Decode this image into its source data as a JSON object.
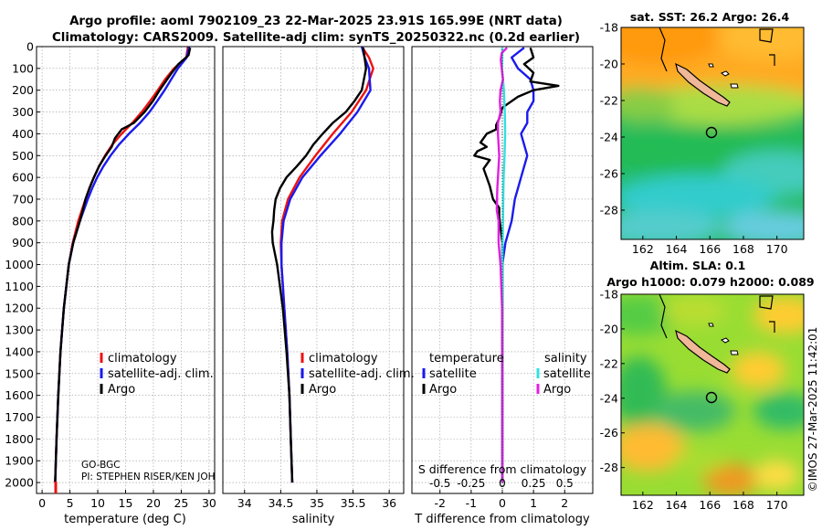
{
  "title": {
    "line1": "Argo profile: aoml 7902109_23 22-Mar-2025 23.91S 165.99E (NRT data)",
    "line2": "Climatology: CARS2009. Satellite-adj clim: synTS_20250322.nc (0.2d earlier)"
  },
  "colors": {
    "clim": "#ee1111",
    "sat": "#1a1aee",
    "argo": "#000000",
    "sat_s": "#33e0e0",
    "argo_s": "#e020e0",
    "grid": "#9a9a9a",
    "island": "#f0b898"
  },
  "chart_data": [
    {
      "type": "line",
      "id": "temperature",
      "xlabel": "temperature (deg C)",
      "ylabel": "",
      "xlim": [
        -1,
        31
      ],
      "ylim": [
        2050,
        0
      ],
      "xticks": [
        0,
        5,
        10,
        15,
        20,
        25,
        30
      ],
      "yticks": [
        0,
        100,
        200,
        300,
        400,
        500,
        600,
        700,
        800,
        900,
        1000,
        1100,
        1200,
        1300,
        1400,
        1500,
        1600,
        1700,
        1800,
        1900,
        2000
      ],
      "legend": [
        "climatology",
        "satellite-adj. clim.",
        "Argo"
      ],
      "legend_loc": "center-right",
      "annotation": [
        "GO-BGC",
        "PI: STEPHEN RISER/KEN JOHN"
      ],
      "series": [
        {
          "name": "climatology",
          "color": "clim",
          "depth": [
            0,
            50,
            100,
            150,
            200,
            250,
            300,
            350,
            400,
            450,
            500,
            550,
            600,
            650,
            700,
            800,
            900,
            1000,
            1200,
            1400,
            1600,
            1800,
            2000
          ],
          "values": [
            26.2,
            25.9,
            23.7,
            22.1,
            20.8,
            19.4,
            17.9,
            16.2,
            14.3,
            12.6,
            11.3,
            10.2,
            9.3,
            8.5,
            7.8,
            6.5,
            5.5,
            4.8,
            3.9,
            3.3,
            2.9,
            2.6,
            2.35
          ]
        },
        {
          "name": "satellite-adj. clim.",
          "color": "sat",
          "depth": [
            0,
            50,
            100,
            150,
            200,
            250,
            300,
            350,
            400,
            450,
            500,
            550,
            600,
            650,
            700,
            800,
            900,
            1000,
            1200,
            1400,
            1600,
            1800,
            2000
          ],
          "values": [
            26.4,
            26.0,
            24.4,
            23.2,
            22.0,
            20.7,
            19.3,
            17.6,
            15.6,
            13.8,
            12.3,
            11.0,
            9.9,
            9.0,
            8.2,
            6.8,
            5.6,
            4.8,
            3.9,
            3.3,
            2.9,
            2.6,
            2.35
          ]
        },
        {
          "name": "Argo",
          "color": "argo",
          "depth": [
            5,
            40,
            80,
            120,
            160,
            200,
            250,
            300,
            350,
            380,
            420,
            460,
            500,
            550,
            600,
            650,
            700,
            750,
            800,
            900,
            1000,
            1200,
            1400,
            1600,
            1800,
            2000
          ],
          "values": [
            26.6,
            26.3,
            24.5,
            23.3,
            22.2,
            21.1,
            19.9,
            18.4,
            16.5,
            14.3,
            13.1,
            12.5,
            11.4,
            10.2,
            9.3,
            8.5,
            7.8,
            7.3,
            6.8,
            5.6,
            4.8,
            3.9,
            3.3,
            2.9,
            2.6,
            2.35
          ]
        }
      ]
    },
    {
      "type": "line",
      "id": "salinity",
      "xlabel": "salinity",
      "xlim": [
        33.7,
        36.2
      ],
      "ylim": [
        2050,
        0
      ],
      "xticks": [
        34,
        34.5,
        35,
        35.5,
        36
      ],
      "legend": [
        "climatology",
        "satellite-adj. clim.",
        "Argo"
      ],
      "legend_loc": "center-right",
      "series": [
        {
          "name": "climatology",
          "color": "clim",
          "depth": [
            0,
            50,
            100,
            200,
            300,
            400,
            500,
            600,
            700,
            800,
            900,
            1000,
            1200,
            1400,
            1600,
            1800,
            2000
          ],
          "values": [
            35.62,
            35.72,
            35.78,
            35.68,
            35.48,
            35.22,
            34.98,
            34.76,
            34.6,
            34.52,
            34.5,
            34.51,
            34.55,
            34.59,
            34.62,
            34.64,
            34.66
          ]
        },
        {
          "name": "satellite-adj. clim.",
          "color": "sat",
          "depth": [
            0,
            50,
            100,
            200,
            300,
            400,
            500,
            600,
            700,
            800,
            900,
            1000,
            1200,
            1400,
            1600,
            1800,
            2000
          ],
          "values": [
            35.62,
            35.66,
            35.72,
            35.74,
            35.56,
            35.32,
            35.05,
            34.8,
            34.63,
            34.54,
            34.51,
            34.51,
            34.55,
            34.59,
            34.62,
            34.64,
            34.66
          ]
        },
        {
          "name": "Argo",
          "color": "argo",
          "depth": [
            5,
            50,
            100,
            200,
            250,
            300,
            350,
            400,
            450,
            500,
            550,
            600,
            650,
            700,
            750,
            800,
            850,
            900,
            1000,
            1200,
            1400,
            1600,
            1800,
            2000
          ],
          "values": [
            35.64,
            35.66,
            35.68,
            35.62,
            35.52,
            35.4,
            35.22,
            35.08,
            34.95,
            34.85,
            34.72,
            34.58,
            34.49,
            34.43,
            34.41,
            34.4,
            34.38,
            34.39,
            34.45,
            34.53,
            34.58,
            34.62,
            34.64,
            34.66
          ]
        }
      ]
    },
    {
      "type": "line",
      "id": "difference",
      "xlabel": "T difference from climatology",
      "xlabel_top": "S difference from climatology",
      "xlim": [
        -2.9,
        2.9
      ],
      "ylim": [
        2050,
        0
      ],
      "xticks": [
        -2,
        -1,
        0,
        1,
        2
      ],
      "xticks_top": [
        "-0.5",
        "-0.25",
        "0",
        "0.25",
        "0.5"
      ],
      "legend_temperature": {
        "heading": "temperature",
        "items": [
          "satellite",
          "Argo"
        ]
      },
      "legend_salinity": {
        "heading": "salinity",
        "items": [
          "satellite",
          "Argo"
        ]
      },
      "series": [
        {
          "name": "T satellite",
          "color": "sat",
          "depth": [
            5,
            50,
            100,
            150,
            200,
            250,
            300,
            350,
            400,
            500,
            600,
            700,
            800,
            900,
            1000,
            1200,
            1400,
            1600,
            1800,
            2000
          ],
          "values": [
            0.7,
            0.3,
            0.5,
            0.9,
            1.0,
            1.0,
            0.8,
            0.8,
            0.6,
            0.8,
            0.6,
            0.4,
            0.3,
            0.1,
            0,
            0,
            0,
            0,
            0,
            0
          ]
        },
        {
          "name": "T Argo",
          "color": "argo",
          "depth": [
            5,
            50,
            80,
            120,
            160,
            180,
            200,
            230,
            280,
            330,
            360,
            380,
            400,
            440,
            460,
            480,
            500,
            520,
            560,
            600,
            640,
            700,
            740,
            780,
            900,
            1000,
            1200,
            1400,
            1600,
            2000
          ],
          "values": [
            0.9,
            1.0,
            0.7,
            1.0,
            0.9,
            1.8,
            1.0,
            0.5,
            0,
            -0.1,
            -0.2,
            -0.2,
            -0.5,
            -0.7,
            -0.5,
            -0.8,
            -0.9,
            -0.4,
            -0.6,
            -0.5,
            -0.4,
            -0.3,
            -0.1,
            -0.1,
            0,
            0,
            0,
            0,
            0,
            0
          ]
        },
        {
          "name": "S satellite",
          "color": "sat_s",
          "depth": [
            5,
            50,
            100,
            200,
            300,
            400,
            500,
            600,
            700,
            800,
            900,
            1000,
            1200,
            1600,
            2000
          ],
          "values": [
            0,
            0,
            -0.01,
            0.05,
            0.08,
            0.09,
            0.07,
            0.04,
            0.03,
            0.02,
            0.01,
            0,
            0,
            0,
            0
          ]
        },
        {
          "name": "S Argo",
          "color": "argo_s",
          "depth": [
            5,
            30,
            60,
            100,
            150,
            200,
            250,
            300,
            350,
            400,
            450,
            500,
            550,
            600,
            650,
            700,
            750,
            800,
            900,
            1000,
            1200,
            1600,
            2000
          ],
          "values": [
            0.15,
            -0.02,
            -0.05,
            -0.02,
            0.02,
            -0.06,
            -0.08,
            -0.06,
            -0.14,
            -0.14,
            -0.12,
            -0.1,
            -0.12,
            -0.14,
            -0.16,
            -0.17,
            -0.18,
            -0.12,
            -0.12,
            -0.06,
            -0.01,
            0,
            0
          ]
        }
      ]
    },
    {
      "type": "heatmap",
      "id": "sst_map",
      "title": "sat. SST: 26.2  Argo: 26.4",
      "xticks": [
        162,
        164,
        166,
        168,
        170
      ],
      "yticks": [
        -18,
        -20,
        -22,
        -24,
        -26,
        -28
      ],
      "xlim": [
        160.7,
        171.6
      ],
      "ylim": [
        -29.6,
        -18
      ]
    },
    {
      "type": "heatmap",
      "id": "sla_map",
      "title": "Altim. SLA: 0.1",
      "subtitle": "Argo h1000: 0.079  h2000: 0.089",
      "xticks": [
        162,
        164,
        166,
        168,
        170
      ],
      "yticks": [
        -18,
        -20,
        -22,
        -24,
        -26,
        -28
      ],
      "xlim": [
        160.7,
        171.6
      ],
      "ylim": [
        -29.6,
        -18
      ]
    }
  ],
  "watermark": "©IMOS 27-Mar-2025 11:42:01"
}
